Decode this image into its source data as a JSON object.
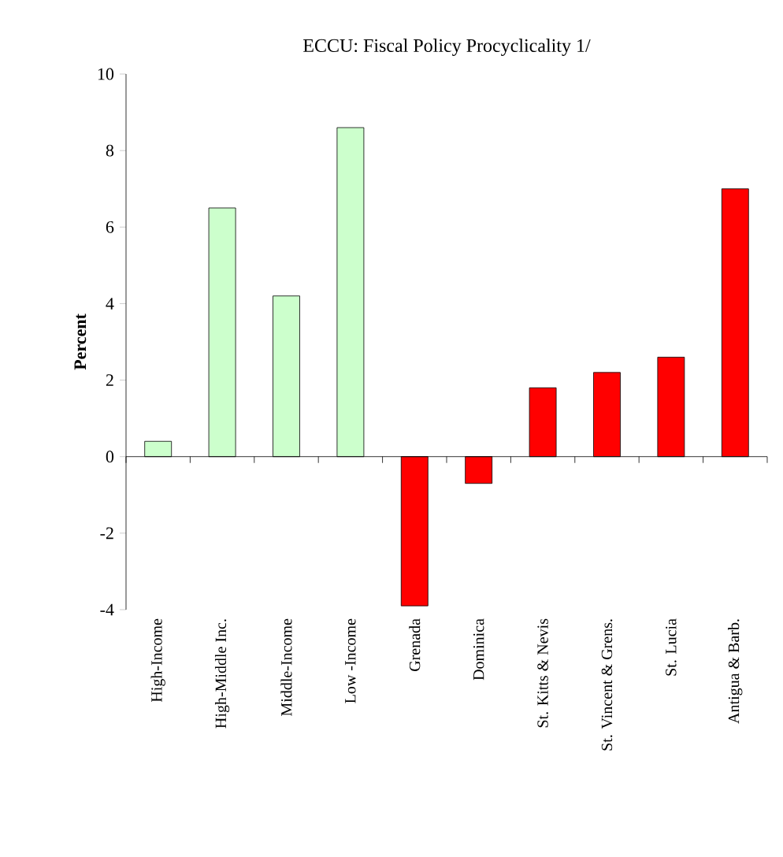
{
  "chart_data": {
    "type": "bar",
    "title": "ECCU: Fiscal Policy Procyclicality 1/",
    "ylabel": "Percent",
    "categories": [
      "High-Income",
      "High-Middle Inc.",
      "Middle-Income",
      "Low -Income",
      "Grenada",
      "Dominica",
      "St. Kitts & Nevis",
      "St. Vincent & Grens.",
      "St. Lucia",
      "Antigua & Barb."
    ],
    "values": [
      0.4,
      6.5,
      4.2,
      8.6,
      -3.9,
      -0.7,
      1.8,
      2.2,
      2.6,
      7.0
    ],
    "colors": [
      "#ccffcc",
      "#ccffcc",
      "#ccffcc",
      "#ccffcc",
      "#ff0000",
      "#ff0000",
      "#ff0000",
      "#ff0000",
      "#ff0000",
      "#ff0000"
    ],
    "ylim": [
      -4,
      10
    ],
    "yticks": [
      -4,
      -2,
      0,
      2,
      4,
      6,
      8,
      10
    ]
  }
}
